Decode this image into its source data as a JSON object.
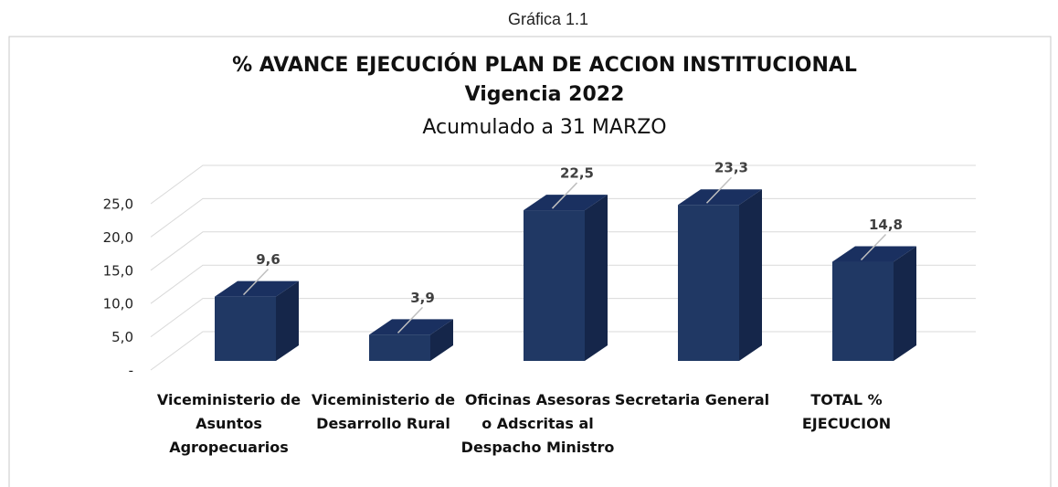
{
  "chart_data": {
    "type": "bar3d",
    "caption": "Gráfica 1.1",
    "title": "% AVANCE EJECUCIÓN PLAN DE ACCION INSTITUCIONAL",
    "subtitle": "Vigencia 2022",
    "note": "Acumulado a 31 MARZO",
    "categories": [
      "Viceministerio de Asuntos Agropecuarios",
      "Viceministerio de Desarrollo Rural",
      "Oficinas Asesoras o Adscritas al Despacho Ministro",
      "Secretaria General",
      "TOTAL % EJECUCION"
    ],
    "values": [
      9.6,
      3.9,
      22.5,
      23.3,
      14.8
    ],
    "value_labels": [
      "9,6",
      "3,9",
      "22,5",
      "23,3",
      "14,8"
    ],
    "color": "#203864",
    "ylim": [
      0,
      25
    ],
    "yticks": [
      {
        "value": 0,
        "label": "-"
      },
      {
        "value": 5,
        "label": "5,0"
      },
      {
        "value": 10,
        "label": "10,0"
      },
      {
        "value": 15,
        "label": "15,0"
      },
      {
        "value": 20,
        "label": "20,0"
      },
      {
        "value": 25,
        "label": "25,0"
      }
    ],
    "grid": true
  }
}
